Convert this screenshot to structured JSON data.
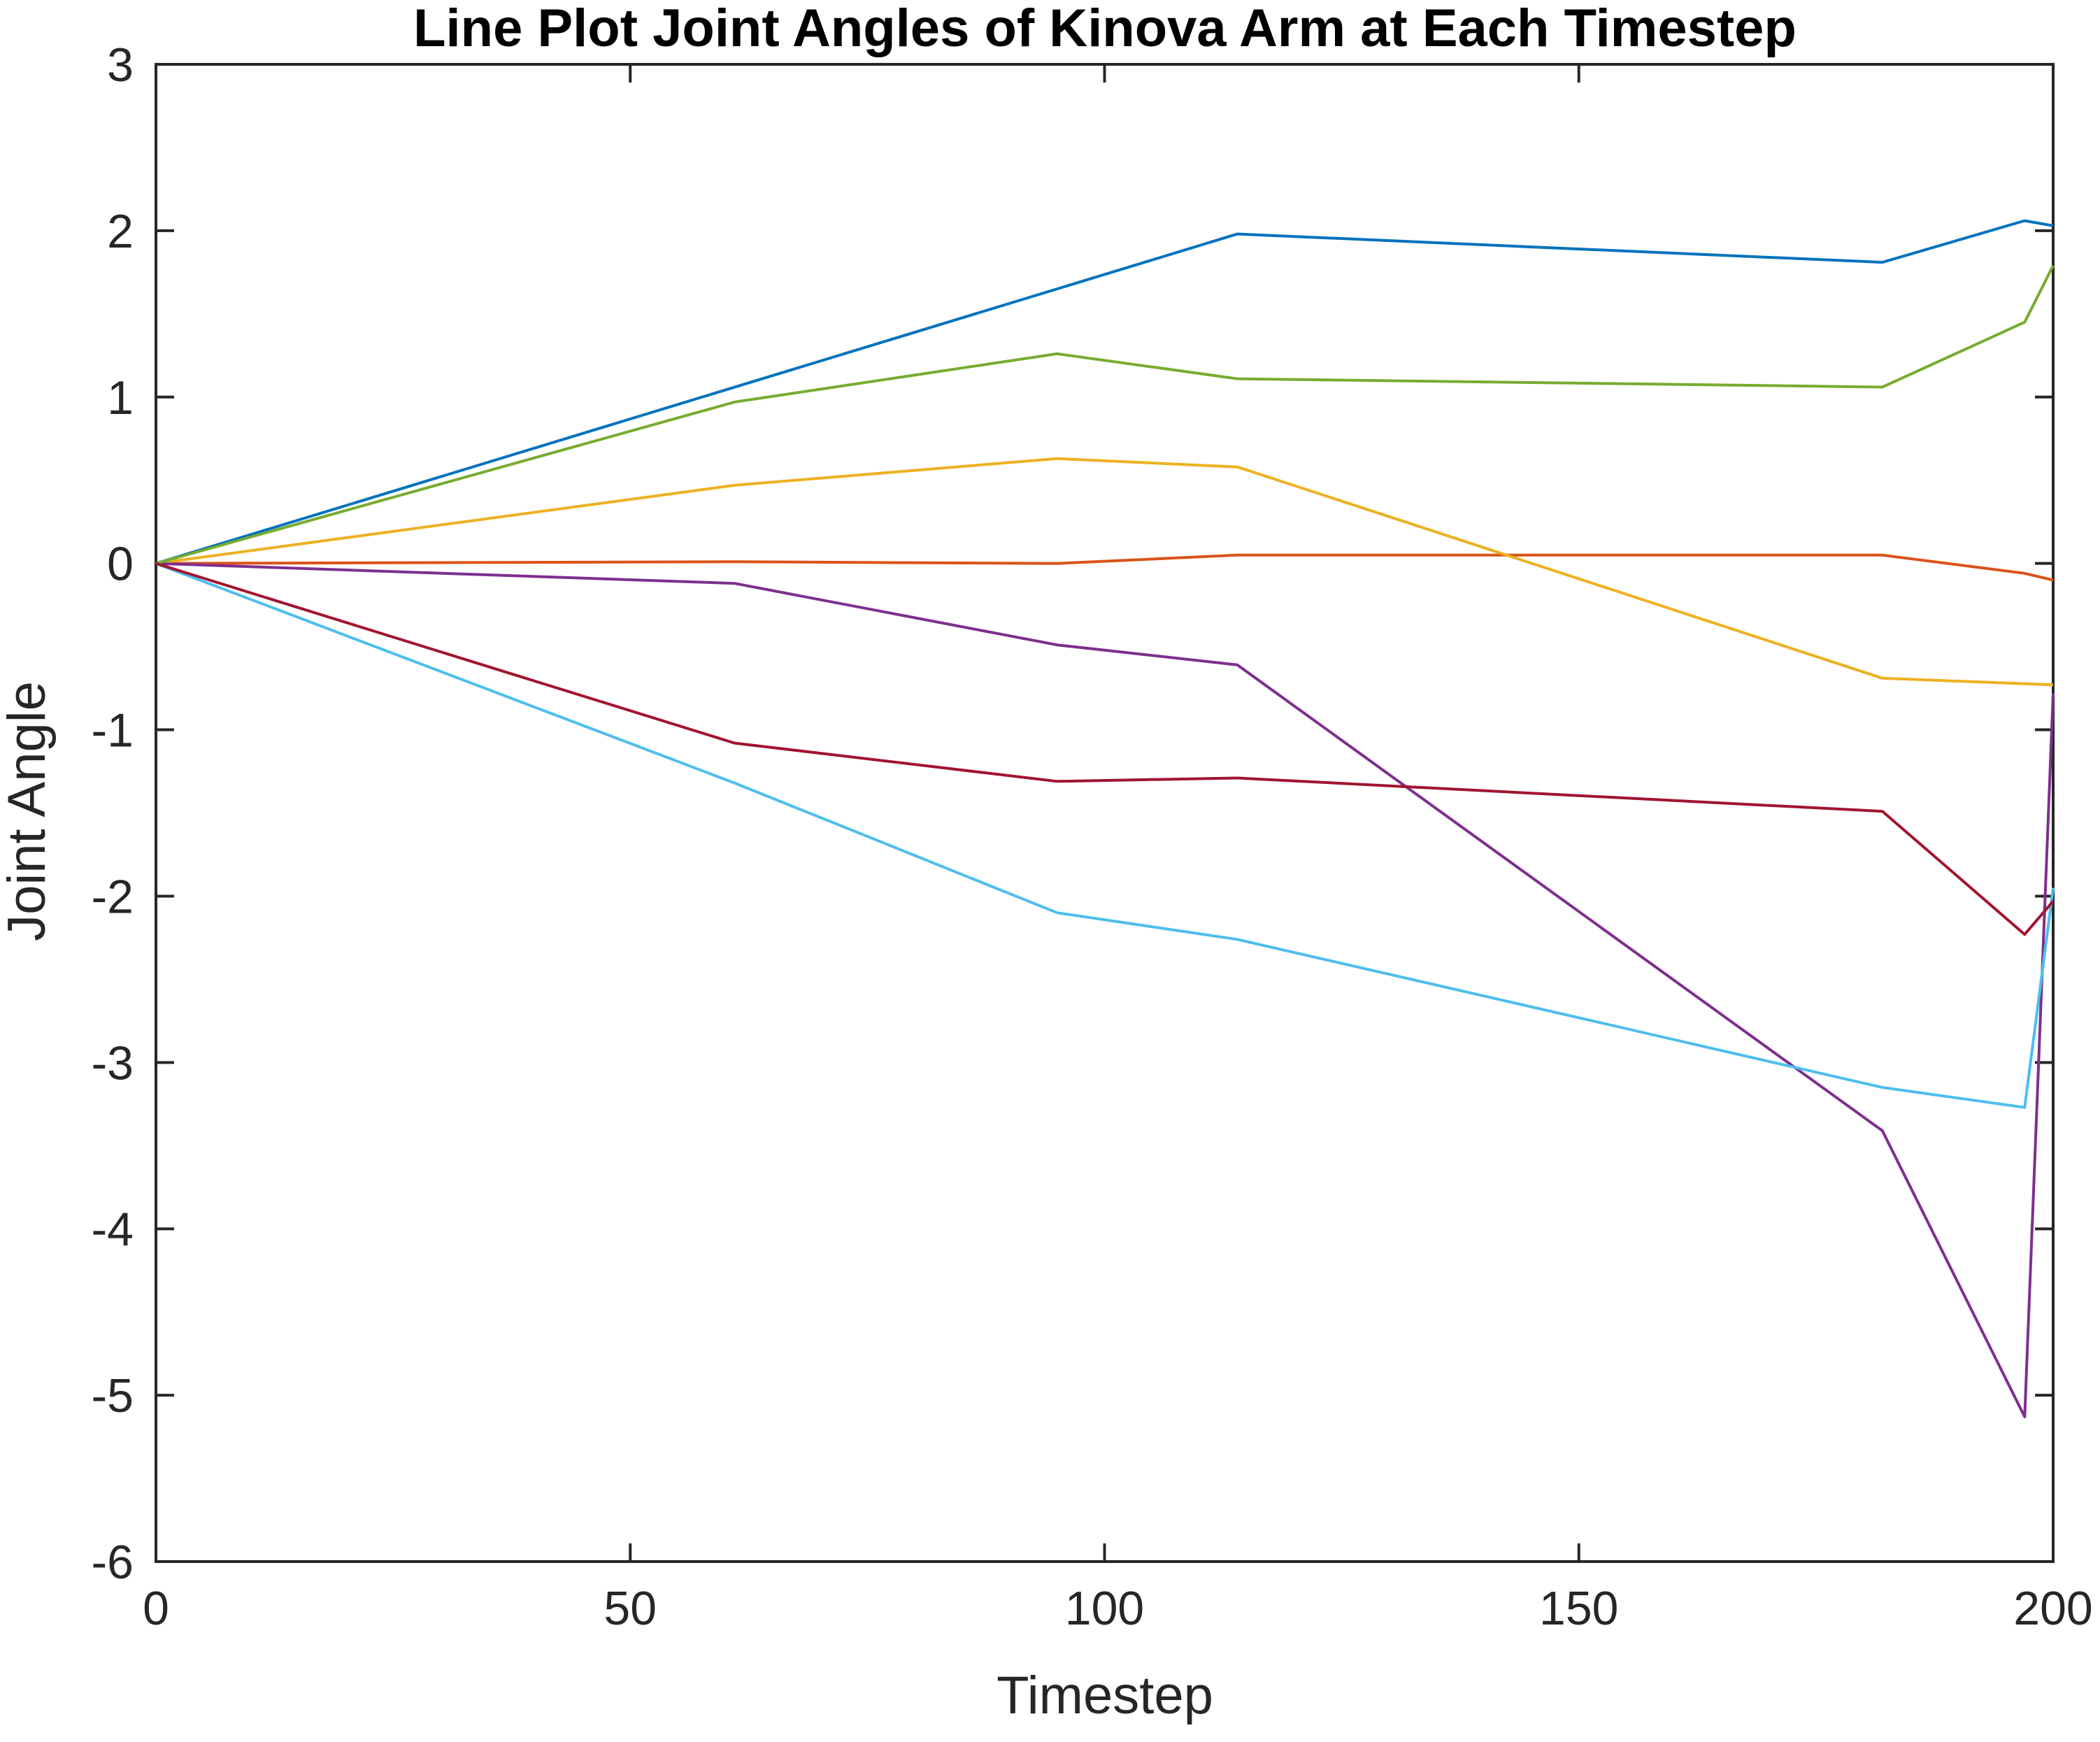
{
  "chart_data": {
    "type": "line",
    "title": "Line Plot Joint Angles of Kinova Arm at Each Timestep",
    "xlabel": "Timestep",
    "ylabel": "Joint Angle",
    "xlim": [
      0,
      200
    ],
    "ylim": [
      -6,
      3
    ],
    "xticks": [
      0,
      50,
      100,
      150,
      200
    ],
    "yticks": [
      -6,
      -5,
      -4,
      -3,
      -2,
      -1,
      0,
      1,
      2,
      3
    ],
    "grid": false,
    "legend": "none",
    "series": [
      {
        "color": "#0072BD",
        "x": [
          0,
          114,
          182,
          197,
          200
        ],
        "y": [
          0,
          1.98,
          1.81,
          2.06,
          2.03
        ]
      },
      {
        "color": "#D95319",
        "x": [
          0,
          61,
          95,
          114,
          182,
          197,
          200
        ],
        "y": [
          0,
          0.01,
          0.0,
          0.05,
          0.05,
          -0.06,
          -0.1
        ]
      },
      {
        "color": "#EDB120",
        "x": [
          0,
          61,
          95,
          114,
          182,
          200
        ],
        "y": [
          0,
          0.47,
          0.63,
          0.58,
          -0.69,
          -0.73
        ]
      },
      {
        "color": "#7E2F8E",
        "x": [
          0,
          61,
          95,
          114,
          182,
          197,
          200
        ],
        "y": [
          0,
          -0.12,
          -0.49,
          -0.61,
          -3.41,
          -5.13,
          -0.78
        ]
      },
      {
        "color": "#77AC30",
        "x": [
          0,
          61,
          95,
          114,
          182,
          197,
          200
        ],
        "y": [
          0,
          0.97,
          1.26,
          1.11,
          1.06,
          1.45,
          1.79
        ]
      },
      {
        "color": "#4DBEEE",
        "x": [
          0,
          61,
          95,
          114,
          182,
          197,
          200
        ],
        "y": [
          0,
          -1.32,
          -2.1,
          -2.26,
          -3.15,
          -3.27,
          -1.95
        ]
      },
      {
        "color": "#A2142F",
        "x": [
          0,
          61,
          95,
          114,
          182,
          197,
          200
        ],
        "y": [
          0,
          -1.08,
          -1.31,
          -1.29,
          -1.49,
          -2.23,
          -2.03
        ]
      }
    ]
  }
}
